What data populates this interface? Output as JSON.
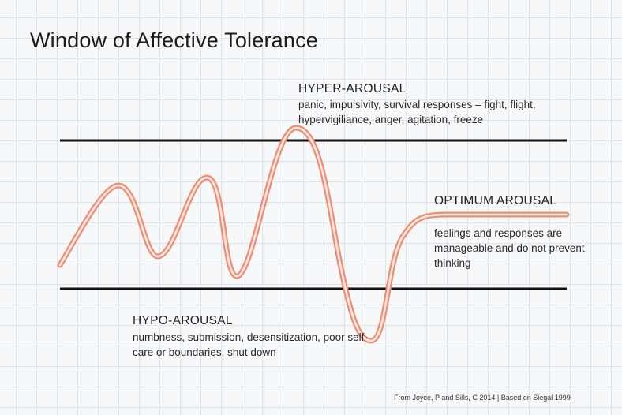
{
  "title": "Window of Affective Tolerance",
  "hyper_arousal": {
    "heading": "HYPER-AROUSAL",
    "description": "panic, impulsivity, survival responses – fight, flight, hypervigiliance, anger, agitation, freeze"
  },
  "optimum_arousal": {
    "heading": "OPTIMUM AROUSAL",
    "description": "feelings and responses are manageable and do not prevent thinking"
  },
  "hypo_arousal": {
    "heading": "HYPO-AROUSAL",
    "description": "numbness, submission, desensitization, poor self-care or boundaries, shut down"
  },
  "source": "From Joyce, P and Sills, C 2014 | Based on Siegal 1999",
  "colors": {
    "wave_outer": "#ef8c72",
    "wave_inner": "#fbeae4",
    "threshold_line": "#111111",
    "grid": "#dfe3ea"
  }
}
